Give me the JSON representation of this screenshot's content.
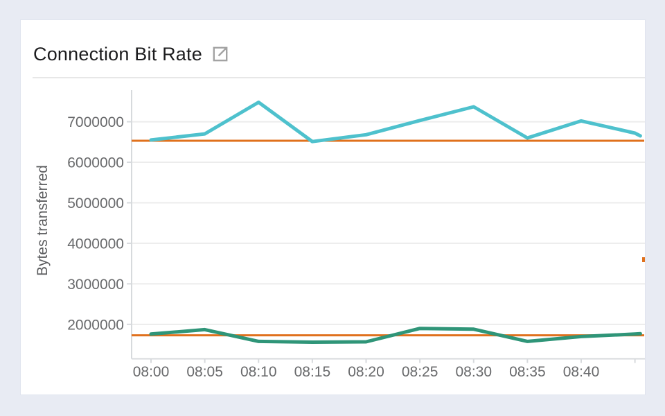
{
  "header": {
    "title": "Connection Bit Rate",
    "icon": "external-link-icon"
  },
  "colors": {
    "series_teal": "#4ec1cd",
    "series_green": "#2f9578",
    "threshold_orange": "#e0711d",
    "background": "#e8ebf3",
    "card": "#ffffff"
  },
  "chart_data": {
    "type": "line",
    "title": "Connection Bit Rate",
    "xlabel": "",
    "ylabel": "Bytes transferred",
    "ylim": [
      1150000,
      7780000
    ],
    "grid": "horizontal",
    "legend_position": "none",
    "y_ticks": [
      7000000,
      6000000,
      5000000,
      4000000,
      3000000,
      2000000
    ],
    "x_tick_labels": [
      "08:00",
      "08:05",
      "08:10",
      "08:15",
      "08:20",
      "08:25",
      "08:30",
      "08:35",
      "08:40"
    ],
    "x_ticks_unlabeled": [
      "08:45"
    ],
    "series": [
      {
        "name": "upper-series",
        "color": "#4ec1cd",
        "x": [
          "08:00",
          "08:05",
          "08:10",
          "08:15",
          "08:20",
          "08:25",
          "08:30",
          "08:35",
          "08:40",
          "08:45",
          "08:45:30"
        ],
        "values": [
          6550000,
          6700000,
          7480000,
          6510000,
          6680000,
          7030000,
          7370000,
          6600000,
          7020000,
          6720000,
          6650000
        ]
      },
      {
        "name": "lower-series",
        "color": "#2f9578",
        "x": [
          "08:00",
          "08:05",
          "08:10",
          "08:15",
          "08:20",
          "08:25",
          "08:30",
          "08:35",
          "08:40",
          "08:45",
          "08:45:30"
        ],
        "values": [
          1760000,
          1870000,
          1580000,
          1560000,
          1570000,
          1900000,
          1880000,
          1580000,
          1700000,
          1760000,
          1770000
        ]
      }
    ],
    "thresholds": [
      {
        "name": "upper-threshold",
        "value": 6530000,
        "color": "#e0711d"
      },
      {
        "name": "lower-threshold",
        "value": 1730000,
        "color": "#e0711d"
      }
    ]
  }
}
